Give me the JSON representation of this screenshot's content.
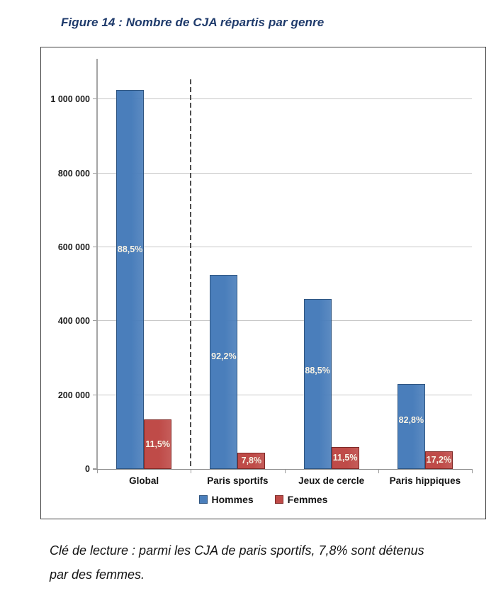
{
  "figure": {
    "title": "Figure 14 : Nombre de CJA répartis par genre",
    "title_color": "#1e3a6b",
    "caption_lines": [
      "Clé de lecture : parmi les CJA de paris sportifs, 7,8% sont détenus",
      "par des femmes."
    ]
  },
  "chart_data": {
    "type": "bar",
    "title": "Figure 14 : Nombre de CJA répartis par genre",
    "categories": [
      "Global",
      "Paris sportifs",
      "Jeux de cercle",
      "Paris hippiques"
    ],
    "series": [
      {
        "name": "Hommes",
        "color": "#4a7ebb",
        "border_color": "#2f5580",
        "values": [
          1025000,
          525000,
          460000,
          230000
        ],
        "data_labels": [
          "88,5%",
          "92,2%",
          "88,5%",
          "82,8%"
        ]
      },
      {
        "name": "Femmes",
        "color": "#bf4b48",
        "border_color": "#7f2a27",
        "values": [
          134000,
          45000,
          60000,
          48000
        ],
        "data_labels": [
          "11,5%",
          "7,8%",
          "11,5%",
          "17,2%"
        ]
      }
    ],
    "yticks": [
      {
        "value": 0,
        "label": "0"
      },
      {
        "value": 200000,
        "label": "200 000"
      },
      {
        "value": 400000,
        "label": "400 000"
      },
      {
        "value": 600000,
        "label": "600 000"
      },
      {
        "value": 800000,
        "label": "800 000"
      },
      {
        "value": 1000000,
        "label": "1 000 000"
      }
    ],
    "ylim": [
      0,
      1110000
    ],
    "xlabel": "",
    "ylabel": "",
    "grid": true,
    "legend_position": "bottom",
    "separator_after_category": 0
  }
}
